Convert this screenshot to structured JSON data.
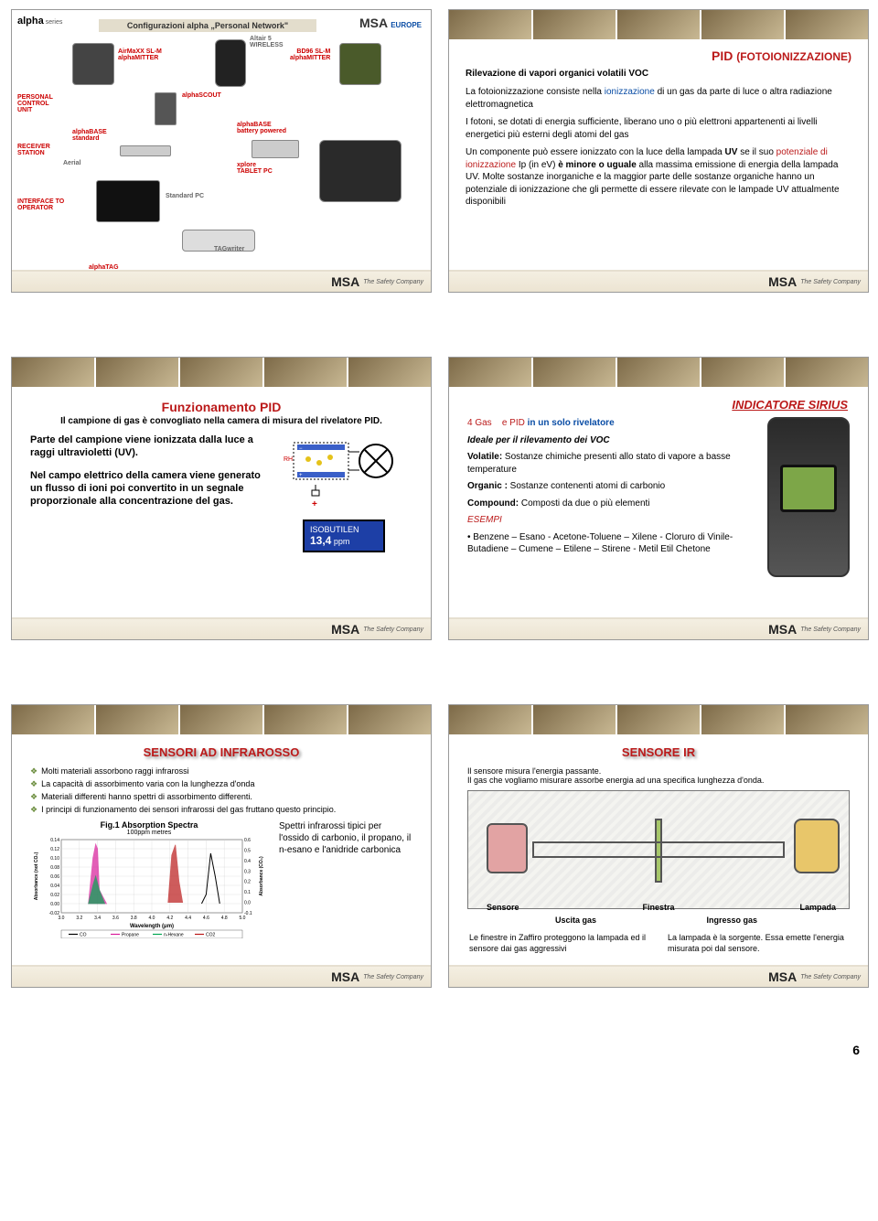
{
  "page_number": "6",
  "slide1": {
    "logo_main": "alpha",
    "logo_series": "series",
    "title": "Configurazioni alpha „Personal Network\"",
    "msa": "MSA",
    "msa_region": "EUROPE",
    "labels": {
      "airmaxx": "AirMaXX SL-M\nalphaMITTER",
      "altair": "Altair 5\nWIRELESS",
      "bd96": "BD96 SL-M\nalphaMITTER",
      "pcu": "PERSONAL\nCONTROL\nUNIT",
      "alphascout": "alphaSCOUT",
      "alphabase_std": "alphaBASE\nstandard",
      "alphabase_batt": "alphaBASE\nbattery powered",
      "receiver": "RECEIVER\nSTATION",
      "aerial": "Aerial",
      "xplore": "xplore\nTABLET PC",
      "interface": "INTERFACE TO\nOPERATOR",
      "standard_pc": "Standard PC",
      "tagwriter": "TAGwriter",
      "alphatag": "alphaTAG"
    }
  },
  "slide2": {
    "title_main": "PID",
    "title_paren": "(FOTOIONIZZAZIONE)",
    "subtitle": "Rilevazione di vapori organici volatili  VOC",
    "p1a": "La fotoionizzazione consiste nella ",
    "p1b": "ionizzazione",
    "p1c": " di un gas da parte di luce o altra radiazione elettromagnetica",
    "p2": "I fotoni, se dotati di energia sufficiente, liberano uno o più elettroni appartenenti ai livelli energetici più esterni degli atomi del gas",
    "p3a": "Un componente può essere ionizzato con la luce della lampada ",
    "p3b": "UV",
    "p3c": " se il suo ",
    "p3d": "potenziale di ionizzazione",
    "p3e": " Ip (in eV) ",
    "p3f": "è minore o uguale",
    "p3g": " alla massima emissione di energia della lampada UV. Molte sostanze inorganiche e la maggior parte delle sostanze organiche hanno un potenziale di ionizzazione che gli permette di essere rilevate con le lampade UV attualmente disponibili"
  },
  "slide3": {
    "title": "Funzionamento PID",
    "subtitle": "Il campione di gas è convogliato nella camera di misura del rivelatore PID.",
    "left_p1": "Parte del campione viene ionizzata dalla luce a raggi ultravioletti (UV).",
    "left_p2": "Nel campo elettrico della camera viene generato un flusso di ioni poi convertito in un segnale proporzionale alla concentrazione del gas.",
    "display_label": "ISOBUTILEN",
    "display_value": "13,4",
    "display_unit": "ppm"
  },
  "slide4": {
    "title": "INDICATORE SIRIUS",
    "line1a": "4 Gas",
    "line1b": "e PID",
    "line1c": " in un solo rivelatore",
    "p2": "Ideale per il rilevamento dei VOC",
    "p3_b": "Volatile:",
    "p3": " Sostanze chimiche presenti allo stato di vapore a basse temperature",
    "p4_b": "Organic :",
    "p4": " Sostanze contenenti atomi di carbonio",
    "p5_b": "Compound:",
    "p5": " Composti da due o più elementi",
    "esempi": "ESEMPI",
    "bullet": "• Benzene – Esano - Acetone-Toluene – Xilene - Cloruro di Vinile- Butadiene – Cumene – Etilene – Stirene - Metil Etil Chetone"
  },
  "slide5": {
    "title": "SENSORI AD INFRAROSSO",
    "bullets": [
      "Molti materiali assorbono raggi infrarossi",
      "La capacità di assorbimento varia con la lunghezza d'onda",
      "Materiali differenti hanno spettri di assorbimento differenti.",
      "I principi di funzionamento dei sensori infrarossi del gas fruttano questo principio."
    ],
    "chart": {
      "title": "Fig.1 Absorption Spectra",
      "subtitle": "100ppm metres",
      "xlabel": "Wavelength (μm)",
      "ylabel_left": "Absorbance (not CO₂)",
      "ylabel_right": "Absorbance (CO₂)",
      "x_ticks": [
        "3.0",
        "3.2",
        "3.4",
        "3.6",
        "3.8",
        "4.0",
        "4.2",
        "4.4",
        "4.6",
        "4.8",
        "5.0"
      ],
      "yl_ticks": [
        "0.14",
        "0.12",
        "0.10",
        "0.08",
        "0.06",
        "0.04",
        "0.02",
        "0.00",
        "-0.02"
      ],
      "yr_ticks": [
        "0.6",
        "0.5",
        "0.4",
        "0.3",
        "0.2",
        "0.1",
        "0.0",
        "-0.1"
      ],
      "legend": [
        "CO",
        "Propane",
        "n-Hexane",
        "CO2"
      ],
      "colors": {
        "CO": "#000000",
        "Propane": "#d81b9a",
        "n-Hexane": "#00a651",
        "CO2": "#ba1818",
        "grid": "#cccccc",
        "axis": "#000000"
      },
      "series": {
        "CO": [
          [
            4.55,
            0.0
          ],
          [
            4.6,
            0.02
          ],
          [
            4.65,
            0.11
          ],
          [
            4.7,
            0.06
          ],
          [
            4.75,
            0.0
          ]
        ],
        "Propane": [
          [
            3.3,
            0.0
          ],
          [
            3.35,
            0.1
          ],
          [
            3.38,
            0.13
          ],
          [
            3.4,
            0.12
          ],
          [
            3.42,
            0.03
          ],
          [
            3.5,
            0.0
          ]
        ],
        "n-Hexane": [
          [
            3.3,
            0.0
          ],
          [
            3.35,
            0.04
          ],
          [
            3.38,
            0.06
          ],
          [
            3.42,
            0.03
          ],
          [
            3.48,
            0.0
          ]
        ],
        "CO2": [
          [
            4.18,
            0.0
          ],
          [
            4.22,
            0.45
          ],
          [
            4.26,
            0.55
          ],
          [
            4.3,
            0.2
          ],
          [
            4.34,
            0.0
          ]
        ]
      },
      "xlim": [
        3.0,
        5.0
      ],
      "ylim_l": [
        -0.02,
        0.14
      ],
      "ylim_r": [
        -0.1,
        0.6
      ]
    },
    "spectra_text": "Spettri infrarossi tipici per l'ossido di carbonio, il propano, il n-esano e l'anidride carbonica"
  },
  "slide6": {
    "title": "SENSORE IR",
    "intro1": "Il sensore misura l'energia passante.",
    "intro2": "Il gas che vogliamo misurare assorbe energia ad una specifica lunghezza d'onda.",
    "labels": {
      "sensore": "Sensore",
      "uscita": "Uscita gas",
      "finestra": "Finestra",
      "ingresso": "Ingresso gas",
      "lampada": "Lampada"
    },
    "col_l": "Le finestre in Zaffiro proteggono la lampada ed il sensore dai gas aggressivi",
    "col_r": "La lampada è la sorgente. Essa emette l'energia misurata poi dal sensore."
  },
  "msa": {
    "name": "MSA",
    "tag": "The Safety Company"
  }
}
